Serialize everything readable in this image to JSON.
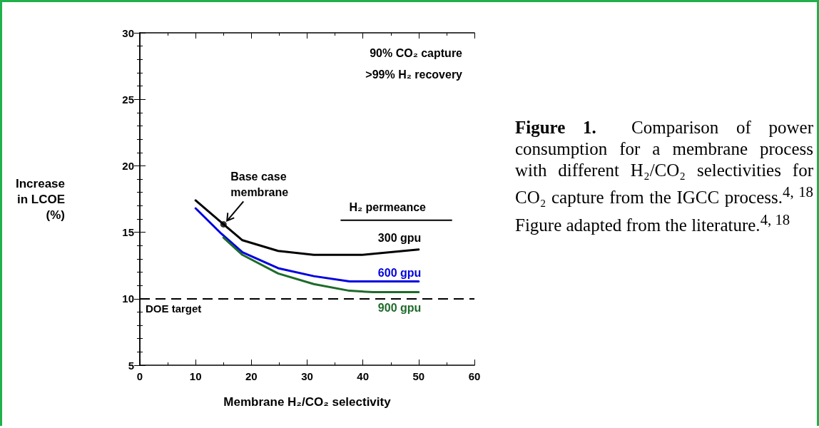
{
  "chart_data": {
    "type": "line",
    "xlabel": "Membrane H₂/CO₂ selectivity",
    "ylabel": "Increase\nin LCOE\n(%)",
    "legend_title": "H₂ permeance",
    "xlim": [
      0,
      60
    ],
    "xticks": [
      0,
      10,
      20,
      30,
      40,
      50,
      60
    ],
    "ylim": [
      5,
      30
    ],
    "yticks": [
      5,
      10,
      15,
      20,
      25,
      30
    ],
    "grid": false,
    "legend": false,
    "marker": "none",
    "line_style": "solid",
    "series": [
      {
        "name": "300 gpu",
        "color": "#000000",
        "x": [
          10,
          15,
          18.4,
          24.8,
          31.2,
          39.8,
          50
        ],
        "values": [
          17.4,
          15.6,
          14.4,
          13.6,
          13.3,
          13.3,
          13.7
        ]
      },
      {
        "name": "600 gpu",
        "color": "#0000e0",
        "x": [
          10,
          14.6,
          18.4,
          24.8,
          31.2,
          37.6,
          50
        ],
        "values": [
          16.8,
          14.9,
          13.5,
          12.3,
          11.7,
          11.3,
          11.3
        ]
      },
      {
        "name": "900 gpu",
        "color": "#1e6b2a",
        "x": [
          15,
          18.4,
          24.8,
          31.2,
          37.6,
          41.8,
          50
        ],
        "values": [
          14.6,
          13.3,
          11.9,
          11.1,
          10.6,
          10.5,
          10.5
        ]
      },
      {
        "type": "scatter",
        "marker": "circle",
        "color": "#000000",
        "x": [
          15
        ],
        "values": [
          15.6
        ]
      }
    ],
    "ref_lines": [
      {
        "axis": "y",
        "value": 10,
        "label": "DOE target",
        "color": "#000000",
        "line_style": "dashed"
      }
    ],
    "annotations": [
      {
        "text": "Base case membrane",
        "x": 15,
        "y": 15.6
      },
      "90% CO₂ capture",
      ">99% H₂ recovery",
      "Figure 1.",
      "Comparison of power consumption for a membrane process with different H₂/CO₂ selectivities for CO₂ capture from the IGCC process.$^{4, 18}$ Figure adapted from the literature.$^{4, 18}$"
    ]
  }
}
